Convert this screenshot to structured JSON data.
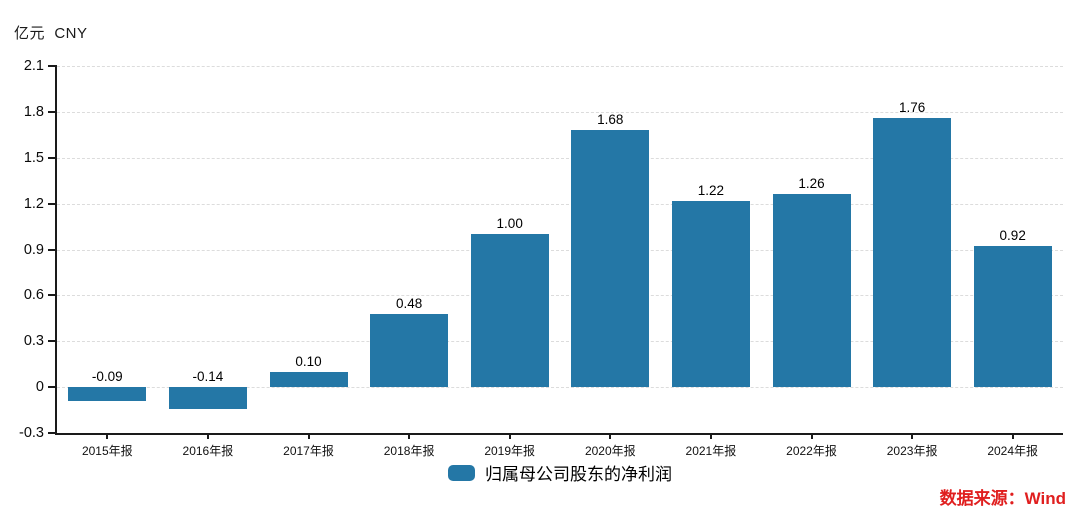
{
  "chart": {
    "unit_label": "亿元  CNY",
    "legend_label": "归属母公司股东的净利润",
    "source": "数据来源：Wind"
  },
  "chart_data": {
    "type": "bar",
    "title": "",
    "xlabel": "",
    "ylabel": "亿元 CNY",
    "categories": [
      "2015年报",
      "2016年报",
      "2017年报",
      "2018年报",
      "2019年报",
      "2020年报",
      "2021年报",
      "2022年报",
      "2023年报",
      "2024年报"
    ],
    "series": [
      {
        "name": "归属母公司股东的净利润",
        "values": [
          -0.09,
          -0.14,
          0.1,
          0.48,
          1.0,
          1.68,
          1.22,
          1.26,
          1.76,
          0.92
        ]
      }
    ],
    "data_labels": [
      "-0.09",
      "-0.14",
      "0.10",
      "0.48",
      "1.00",
      "1.68",
      "1.22",
      "1.26",
      "1.76",
      "0.92"
    ],
    "ylim": [
      -0.3,
      2.1
    ],
    "ytick_step": 0.3,
    "ytick_labels": [
      "2.1",
      "1.8",
      "1.5",
      "1.2",
      "0.9",
      "0.6",
      "0.3",
      "0",
      "-0.3"
    ],
    "grid": true,
    "grid_style": "dashed",
    "legend_position": "bottom",
    "colors": {
      "bar": "#2477a6",
      "grid": "#dcdcdc",
      "axis": "#1a1a1a",
      "text": "#000000",
      "source": "#e01f1f"
    }
  }
}
